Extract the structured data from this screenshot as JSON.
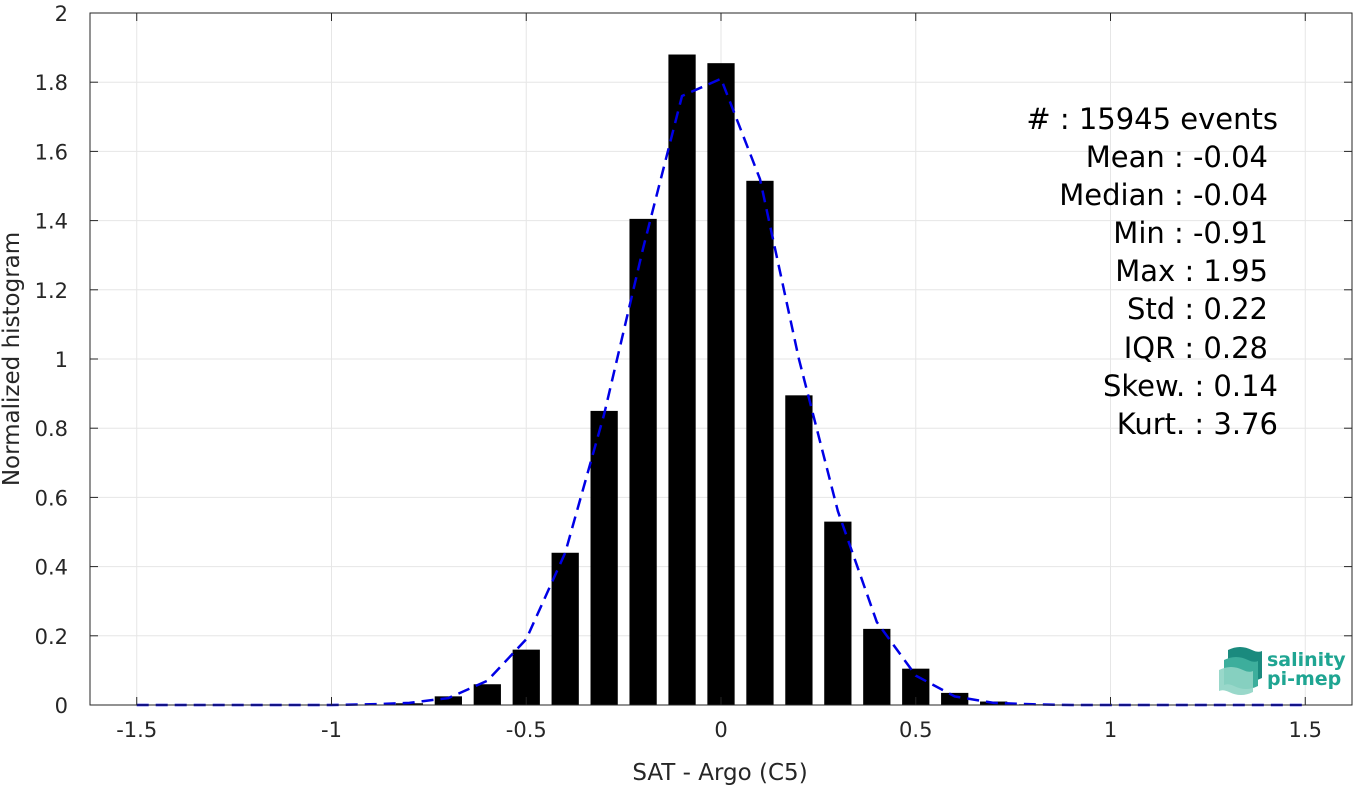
{
  "chart_data": {
    "type": "bar",
    "xlabel": "SAT - Argo (C5)",
    "ylabel": "Normalized histogram",
    "xlim": [
      -1.62,
      1.62
    ],
    "ylim": [
      0,
      2
    ],
    "xticks": [
      -1.5,
      -1,
      -0.5,
      0,
      0.5,
      1,
      1.5
    ],
    "xtick_labels": [
      "-1.5",
      "-1",
      "-0.5",
      "0",
      "0.5",
      "1",
      "1.5"
    ],
    "yticks": [
      0,
      0.2,
      0.4,
      0.6,
      0.8,
      1,
      1.2,
      1.4,
      1.6,
      1.8,
      2
    ],
    "ytick_labels": [
      "0",
      "0.2",
      "0.4",
      "0.6",
      "0.8",
      "1",
      "1.2",
      "1.4",
      "1.6",
      "1.8",
      "2"
    ],
    "grid": true,
    "bar_width": 0.07,
    "series": [
      {
        "type": "bar",
        "color": "#000000",
        "x": [
          -1.5,
          -1.4,
          -1.3,
          -1.2,
          -1.1,
          -1.0,
          -0.9,
          -0.8,
          -0.7,
          -0.6,
          -0.5,
          -0.4,
          -0.3,
          -0.2,
          -0.1,
          0.0,
          0.1,
          0.2,
          0.3,
          0.4,
          0.5,
          0.6,
          0.7,
          0.8,
          0.9,
          1.0,
          1.1,
          1.2,
          1.3,
          1.4,
          1.5
        ],
        "values": [
          0,
          0,
          0,
          0,
          0,
          0,
          0.001,
          0.005,
          0.025,
          0.06,
          0.16,
          0.44,
          0.85,
          1.405,
          1.88,
          1.855,
          1.515,
          0.895,
          0.53,
          0.22,
          0.105,
          0.035,
          0.01,
          0.002,
          0.001,
          0,
          0,
          0,
          0,
          0,
          0
        ]
      },
      {
        "type": "line",
        "style": "dashed",
        "color": "#0000e6",
        "x": [
          -1.5,
          -1.4,
          -1.3,
          -1.2,
          -1.1,
          -1.0,
          -0.9,
          -0.8,
          -0.7,
          -0.6,
          -0.5,
          -0.4,
          -0.3,
          -0.2,
          -0.1,
          0.0,
          0.1,
          0.2,
          0.3,
          0.4,
          0.5,
          0.6,
          0.7,
          0.8,
          0.9,
          1.0,
          1.1,
          1.2,
          1.3,
          1.4,
          1.5
        ],
        "values": [
          0,
          0,
          0,
          0,
          0,
          0,
          0.002,
          0.006,
          0.02,
          0.07,
          0.19,
          0.44,
          0.84,
          1.32,
          1.76,
          1.81,
          1.52,
          1.0,
          0.56,
          0.24,
          0.085,
          0.025,
          0.006,
          0.002,
          0,
          0,
          0,
          0,
          0,
          0,
          0
        ]
      }
    ],
    "stats": {
      "events": "#  : 15945 events",
      "mean": "Mean : -0.04",
      "median": "Median : -0.04",
      "min": "Min : -0.91",
      "max": "Max : 1.95",
      "std": "Std : 0.22",
      "iqr": "IQR : 0.28",
      "skew": "Skew. : 0.14",
      "kurt": "Kurt. : 3.76"
    },
    "logo": {
      "line1": "salinity",
      "line2": "pi-mep"
    }
  }
}
